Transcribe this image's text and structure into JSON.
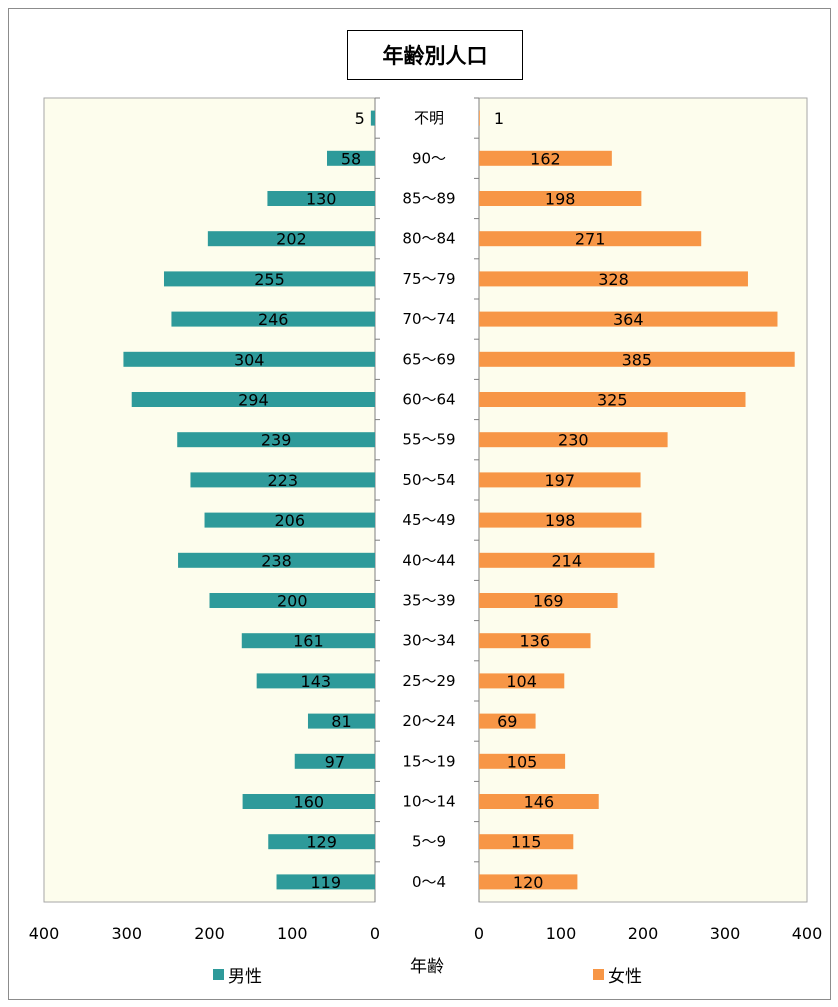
{
  "chart_data": {
    "type": "bar",
    "title": "年齢別人口",
    "xlabel": "年齢",
    "categories": [
      "不明",
      "90〜",
      "85〜89",
      "80〜84",
      "75〜79",
      "70〜74",
      "65〜69",
      "60〜64",
      "55〜59",
      "50〜54",
      "45〜49",
      "40〜44",
      "35〜39",
      "30〜34",
      "25〜29",
      "20〜24",
      "15〜19",
      "10〜14",
      "5〜9",
      "0〜4"
    ],
    "series": [
      {
        "name": "男性",
        "color": "#2e9a9a",
        "values": [
          5,
          58,
          130,
          202,
          255,
          246,
          304,
          294,
          239,
          223,
          206,
          238,
          200,
          161,
          143,
          81,
          97,
          160,
          129,
          119
        ]
      },
      {
        "name": "女性",
        "color": "#f79646",
        "values": [
          1,
          162,
          198,
          271,
          328,
          364,
          385,
          325,
          230,
          197,
          198,
          214,
          169,
          136,
          104,
          69,
          105,
          146,
          115,
          120
        ]
      }
    ],
    "xlim_male": [
      400,
      0
    ],
    "xlim_female": [
      0,
      400
    ],
    "male_ticks": [
      "400",
      "300",
      "200",
      "100",
      "0"
    ],
    "female_ticks": [
      "0",
      "100",
      "200",
      "300",
      "400"
    ],
    "legend": "bottom"
  }
}
